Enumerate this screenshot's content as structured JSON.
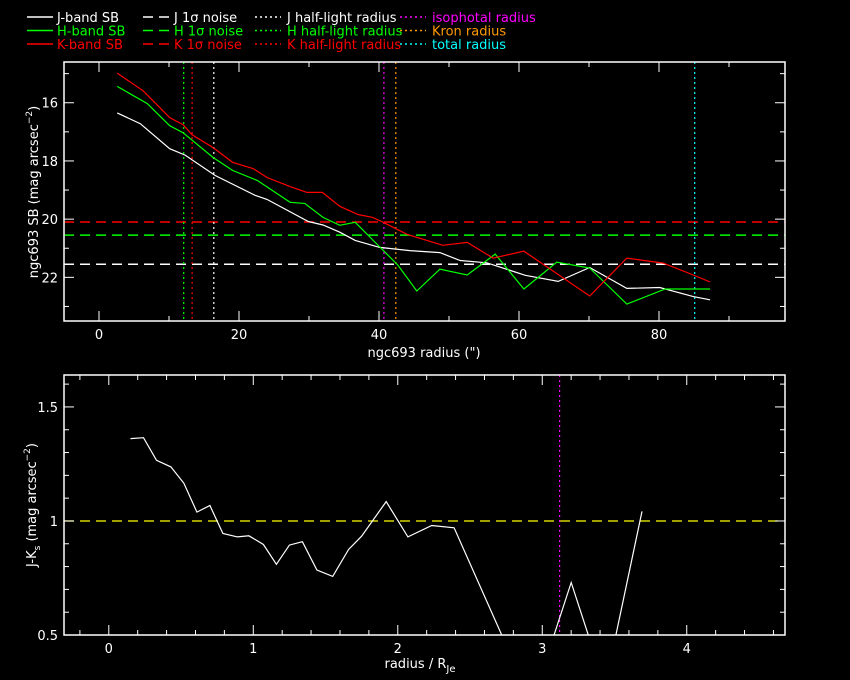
{
  "legend": [
    {
      "label": "J-band SB",
      "color": "#ffffff",
      "style": "solid"
    },
    {
      "label": "H-band SB",
      "color": "#00ff00",
      "style": "solid"
    },
    {
      "label": "K-band SB",
      "color": "#ff0000",
      "style": "solid"
    },
    {
      "label": "J 1σ noise",
      "color": "#ffffff",
      "style": "dashed"
    },
    {
      "label": "H 1σ noise",
      "color": "#00ff00",
      "style": "dashed"
    },
    {
      "label": "K 1σ noise",
      "color": "#ff0000",
      "style": "dashed"
    },
    {
      "label": "J half-light radius",
      "color": "#ffffff",
      "style": "dotted"
    },
    {
      "label": "H half-light radius",
      "color": "#00ff00",
      "style": "dotted"
    },
    {
      "label": "K half-light radius",
      "color": "#ff0000",
      "style": "dotted"
    },
    {
      "label": "isophotal radius",
      "color": "#ff00ff",
      "style": "dotted"
    },
    {
      "label": "Kron radius",
      "color": "#ff9900",
      "style": "dotted"
    },
    {
      "label": "total radius",
      "color": "#00ffff",
      "style": "dotted"
    }
  ],
  "chart_data": [
    {
      "type": "line",
      "xlabel": "ngc693 radius (\")",
      "ylabel": {
        "main": "ngc693 SB (mag arcsec",
        "sup": "−2",
        "end": ")"
      },
      "xlim": [
        -5,
        98
      ],
      "ylim": [
        23.5,
        14.6
      ],
      "xticks": [
        0,
        20,
        40,
        60,
        80
      ],
      "xtick_labels": [
        "0",
        "20",
        "40",
        "60",
        "80"
      ],
      "yticks": [
        16,
        18,
        20,
        22
      ],
      "ytick_labels": [
        "16",
        "18",
        "20",
        "22"
      ],
      "series": [
        {
          "name": "J-band SB",
          "color": "#ffffff",
          "x": [
            2.6,
            5.9,
            10.1,
            12.3,
            16.6,
            22.3,
            24.0,
            29.9,
            32.0,
            34.4,
            36.6,
            40.1,
            44.4,
            48.7,
            51.6,
            55.4,
            60.9,
            65.6,
            70.1,
            75.4,
            80.1,
            84.9,
            87.3
          ],
          "y": [
            16.35,
            16.72,
            17.58,
            17.8,
            18.5,
            19.18,
            19.32,
            20.08,
            20.2,
            20.45,
            20.73,
            20.97,
            21.08,
            21.15,
            21.42,
            21.5,
            21.93,
            22.14,
            21.66,
            22.38,
            22.35,
            22.66,
            22.77
          ]
        },
        {
          "name": "H-band SB",
          "color": "#00ff00",
          "x": [
            2.6,
            6.9,
            10.1,
            12.0,
            16.3,
            19.1,
            22.6,
            27.3,
            29.4,
            32.0,
            34.4,
            36.6,
            42.7,
            45.4,
            48.7,
            52.6,
            56.6,
            60.7,
            65.4,
            70.1,
            75.4,
            80.9,
            87.3
          ],
          "y": [
            15.44,
            16.03,
            16.79,
            17.03,
            17.88,
            18.33,
            18.67,
            19.42,
            19.46,
            19.94,
            20.21,
            20.11,
            21.58,
            22.47,
            21.72,
            21.92,
            21.2,
            22.4,
            21.48,
            21.68,
            22.92,
            22.4,
            22.4
          ]
        },
        {
          "name": "K-band SB",
          "color": "#ff0000",
          "x": [
            2.6,
            6.3,
            10.1,
            12.0,
            13.3,
            16.3,
            19.1,
            22.0,
            24.0,
            27.3,
            29.7,
            31.9,
            34.4,
            37.0,
            39.1,
            40.6,
            44.0,
            49.1,
            52.6,
            56.3,
            60.7,
            70.1,
            75.4,
            80.6,
            84.9,
            87.3
          ],
          "y": [
            14.98,
            15.59,
            16.51,
            16.75,
            17.1,
            17.54,
            18.05,
            18.26,
            18.57,
            18.88,
            19.08,
            19.08,
            19.56,
            19.84,
            19.94,
            20.11,
            20.52,
            20.9,
            20.8,
            21.34,
            21.1,
            22.64,
            21.34,
            21.51,
            21.92,
            22.16
          ]
        }
      ],
      "noise_levels": [
        {
          "name": "K 1σ noise",
          "color": "#ff0000",
          "y": 20.1
        },
        {
          "name": "H 1σ noise",
          "color": "#00ff00",
          "y": 20.55
        },
        {
          "name": "J 1σ noise",
          "color": "#ffffff",
          "y": 21.55
        }
      ],
      "radii": [
        {
          "name": "H half-light radius",
          "color": "#00ff00",
          "x": 12.1
        },
        {
          "name": "K half-light radius",
          "color": "#ff0000",
          "x": 13.3
        },
        {
          "name": "J half-light radius",
          "color": "#ffffff",
          "x": 16.4
        },
        {
          "name": "isophotal radius",
          "color": "#ff00ff",
          "x": 40.7
        },
        {
          "name": "Kron radius",
          "color": "#ff9900",
          "x": 42.4
        },
        {
          "name": "total radius",
          "color": "#00ffff",
          "x": 85.1
        }
      ]
    },
    {
      "type": "line",
      "xlabel": {
        "main": "radius / R",
        "sub": "Je"
      },
      "ylabel": {
        "main": "J-K",
        "sub": "s",
        "mid": " (mag arcsec",
        "sup": "−2",
        "end": ")"
      },
      "xlim": [
        -0.31,
        4.68
      ],
      "ylim": [
        0.5,
        1.64
      ],
      "xticks": [
        0,
        1,
        2,
        3,
        4
      ],
      "xtick_labels": [
        "0",
        "1",
        "2",
        "3",
        "4"
      ],
      "yticks": [
        0.5,
        1,
        1.5
      ],
      "ytick_labels": [
        "0.5",
        "1",
        "1.5"
      ],
      "reference_line": {
        "y": 1.0,
        "color": "#ffff00"
      },
      "radii": [
        {
          "name": "isophotal radius",
          "color": "#ff00ff",
          "x": 3.12
        }
      ],
      "series": [
        {
          "name": "J-Ks",
          "color": "#ffffff",
          "x": [
            0.15,
            0.24,
            0.33,
            0.43,
            0.52,
            0.61,
            0.7,
            0.79,
            0.89,
            0.97,
            1.07,
            1.16,
            1.25,
            1.34,
            1.44,
            1.55,
            1.66,
            1.75,
            1.92,
            2.07,
            2.235,
            2.39,
            2.86,
            3.03,
            3.2,
            3.37,
            3.46,
            3.69
          ],
          "y": [
            1.361,
            1.365,
            1.266,
            1.237,
            1.165,
            1.039,
            1.068,
            0.945,
            0.93,
            0.935,
            0.897,
            0.81,
            0.894,
            0.909,
            0.785,
            0.757,
            0.875,
            0.933,
            1.085,
            0.93,
            0.98,
            0.97,
            0.3,
            0.4,
            0.73,
            0.4,
            0.35,
            1.042
          ]
        }
      ]
    }
  ]
}
